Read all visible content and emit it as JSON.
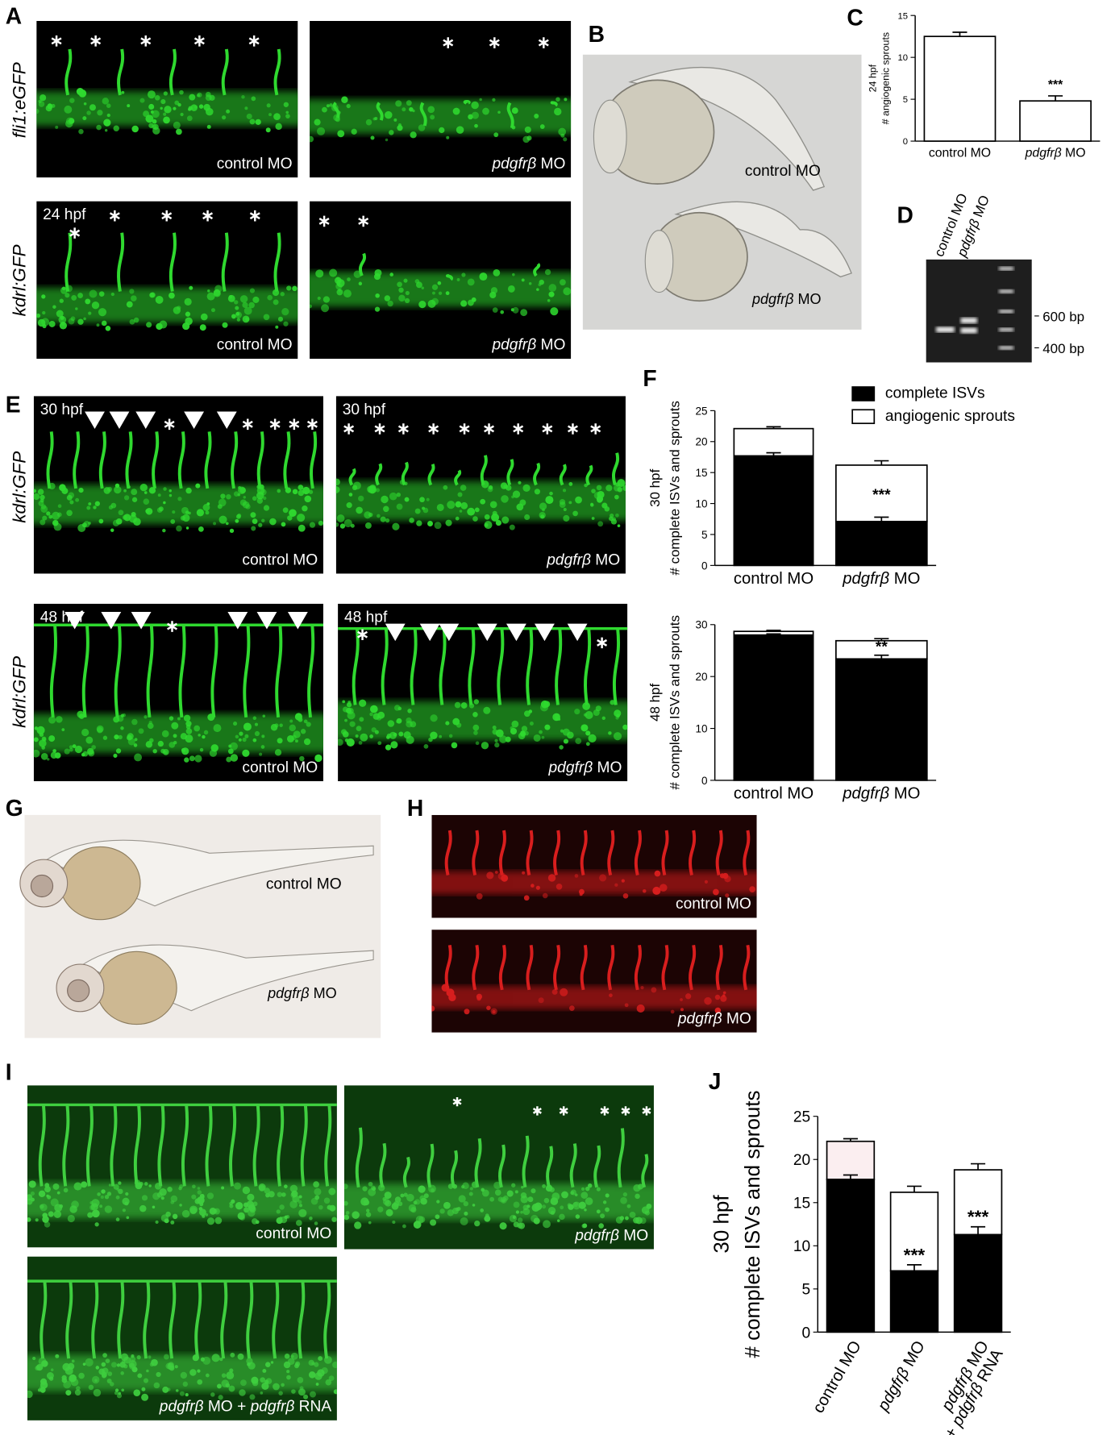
{
  "panels": {
    "A": {
      "label": "A",
      "rows": [
        {
          "marker": "fli1:eGFP",
          "captions": [
            [
              "control MO"
            ],
            [
              {
                "text": "pdgfrβ",
                "italic": true
              },
              " MO"
            ]
          ]
        },
        {
          "marker": "kdrl:GFP",
          "stage": "24 hpf",
          "captions": [
            [
              "control MO"
            ],
            [
              {
                "text": "pdgfrβ",
                "italic": true
              },
              " MO"
            ]
          ]
        }
      ]
    },
    "B": {
      "label": "B",
      "captions": [
        [
          "control MO"
        ],
        [
          {
            "text": "pdgfrβ",
            "italic": true
          },
          " MO"
        ]
      ]
    },
    "C": {
      "label": "C",
      "chart": {
        "type": "bar",
        "ylabel": [
          "24 hpf",
          "# angiogenic sprouts"
        ],
        "categories": [
          [
            [
              "control MO"
            ]
          ],
          [
            [
              {
                "text": "pdgfrβ",
                "italic": true
              },
              " MO"
            ]
          ]
        ],
        "values": [
          12.5,
          4.8
        ],
        "errors": [
          0.5,
          0.6
        ],
        "color": "#ffffff",
        "ylim": [
          0,
          15
        ],
        "yticks": [
          0,
          5,
          10,
          15
        ],
        "annotations": [
          null,
          "***"
        ]
      }
    },
    "D": {
      "label": "D",
      "lanes": [
        [
          "control MO"
        ],
        [
          {
            "text": "pdgfrβ",
            "italic": true
          },
          " MO"
        ]
      ],
      "sizes": [
        "600 bp",
        "400 bp"
      ]
    },
    "E": {
      "label": "E",
      "rows": [
        {
          "marker": "kdrl:GFP",
          "stage": "30 hpf",
          "captions": [
            [
              "control MO"
            ],
            [
              {
                "text": "pdgfrβ",
                "italic": true
              },
              " MO"
            ]
          ]
        },
        {
          "marker": "kdrl:GFP",
          "stage": "48 hpf",
          "captions": [
            [
              "control MO"
            ],
            [
              {
                "text": "pdgfrβ",
                "italic": true
              },
              " MO"
            ]
          ]
        }
      ]
    },
    "F": {
      "label": "F",
      "charts": [
        {
          "type": "stacked-bar",
          "ylabel": [
            "30 hpf",
            "# complete ISVs and sprouts"
          ],
          "categories": [
            [
              [
                "control MO"
              ]
            ],
            [
              [
                {
                  "text": "pdgfrβ",
                  "italic": true
                },
                " MO"
              ]
            ]
          ],
          "series": [
            {
              "name": "complete ISVs",
              "color": "#000000",
              "values": [
                17.7,
                7.1
              ],
              "errors": [
                0.5,
                0.7
              ]
            },
            {
              "name": "angiogenic sprouts",
              "color": "#ffffff",
              "values": [
                4.4,
                9.1
              ],
              "errors": [
                0.3,
                0.7
              ]
            }
          ],
          "ylim": [
            0,
            25
          ],
          "yticks": [
            0,
            5,
            10,
            15,
            20,
            25
          ],
          "annotations": [
            null,
            "***"
          ]
        },
        {
          "type": "stacked-bar",
          "ylabel": [
            "48 hpf",
            "# complete ISVs and sprouts"
          ],
          "categories": [
            [
              [
                "control MO"
              ]
            ],
            [
              [
                {
                  "text": "pdgfrβ",
                  "italic": true
                },
                " MO"
              ]
            ]
          ],
          "series": [
            {
              "color": "#000000",
              "values": [
                28.0,
                23.4
              ],
              "errors": [
                0.2,
                0.7
              ]
            },
            {
              "color": "#ffffff",
              "values": [
                0.7,
                3.5
              ],
              "errors": [
                0.2,
                0.4
              ]
            }
          ],
          "ylim": [
            0,
            30
          ],
          "yticks": [
            0,
            10,
            20,
            30
          ],
          "annotations": [
            null,
            "**"
          ]
        }
      ]
    },
    "G": {
      "label": "G",
      "captions": [
        [
          "control MO"
        ],
        [
          {
            "text": "pdgfrβ",
            "italic": true
          },
          " MO"
        ]
      ]
    },
    "H": {
      "label": "H",
      "captions": [
        [
          "control MO"
        ],
        [
          {
            "text": "pdgfrβ",
            "italic": true
          },
          " MO"
        ]
      ]
    },
    "I": {
      "label": "I",
      "captions": [
        [
          "control MO"
        ],
        [
          {
            "text": "pdgfrβ",
            "italic": true
          },
          " MO"
        ],
        [
          {
            "text": "pdgfrβ",
            "italic": true
          },
          " MO + ",
          {
            "text": "pdgfrβ",
            "italic": true
          },
          " RNA"
        ]
      ]
    },
    "J": {
      "label": "J",
      "chart": {
        "type": "stacked-bar",
        "ylabel": [
          "30 hpf",
          "# complete ISVs and sprouts"
        ],
        "categories": [
          [
            [
              "control MO"
            ]
          ],
          [
            [
              {
                "text": "pdgfrβ",
                "italic": true
              },
              " MO"
            ]
          ],
          [
            [
              {
                "text": "pdgfrβ",
                "italic": true
              },
              " MO"
            ],
            [
              "+ ",
              {
                "text": "pdgfrβ",
                "italic": true
              },
              " RNA"
            ]
          ]
        ],
        "series": [
          {
            "color": "#000000",
            "values": [
              17.7,
              7.1,
              11.3
            ],
            "errors": [
              0.5,
              0.7,
              0.9
            ]
          },
          {
            "colors": [
              "#fbeef0",
              "#ffffff",
              "#ffffff"
            ],
            "values": [
              4.4,
              9.1,
              7.5
            ],
            "errors": [
              0.3,
              0.7,
              0.7
            ]
          }
        ],
        "ylim": [
          0,
          25
        ],
        "yticks": [
          0,
          5,
          10,
          15,
          20,
          25
        ],
        "annotations": [
          null,
          "***",
          "***"
        ]
      }
    }
  }
}
